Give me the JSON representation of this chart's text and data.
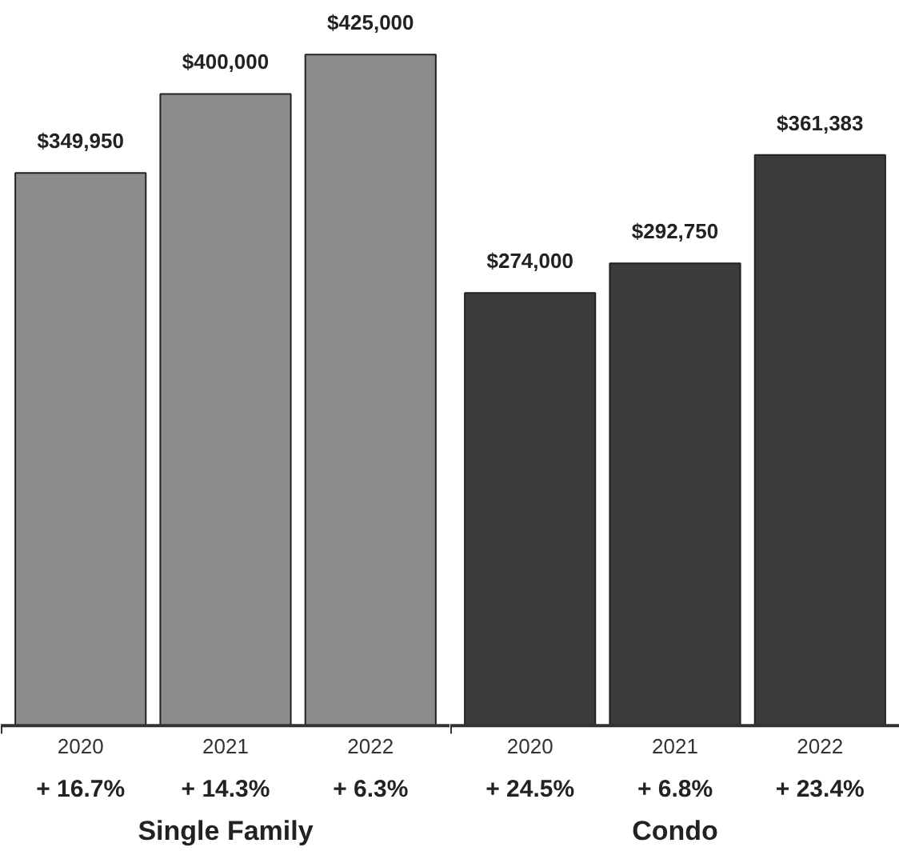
{
  "chart_data": [
    {
      "type": "bar",
      "xlabel": "Single Family",
      "categories": [
        "2020",
        "2021",
        "2022"
      ],
      "values": [
        349950,
        400000,
        425000
      ],
      "color": "#8c8c8c",
      "value_labels": [
        "$349,950",
        "$400,000",
        "$425,000"
      ],
      "annotations": [
        "+ 16.7%",
        "+ 14.3%",
        "+ 6.3%"
      ]
    },
    {
      "type": "bar",
      "xlabel": "Condo",
      "categories": [
        "2020",
        "2021",
        "2022"
      ],
      "values": [
        274000,
        292750,
        361383
      ],
      "color": "#3c3c3c",
      "value_labels": [
        "$274,000",
        "$292,750",
        "$361,383"
      ],
      "annotations": [
        "+ 24.5%",
        "+ 6.8%",
        "+ 23.4%"
      ]
    }
  ]
}
